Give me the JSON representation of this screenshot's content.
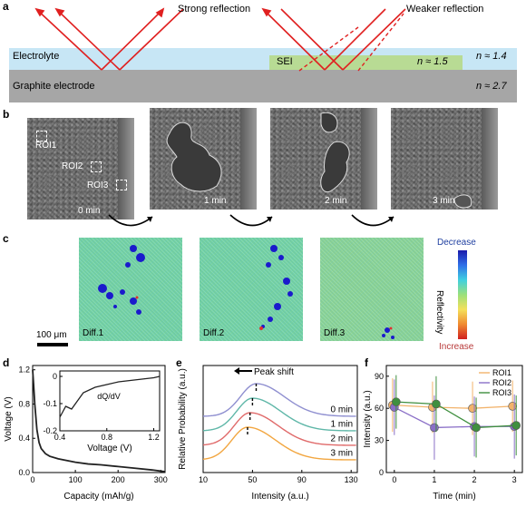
{
  "panels": {
    "a": "a",
    "b": "b",
    "c": "c",
    "d": "d",
    "e": "e",
    "f": "f"
  },
  "a": {
    "strong_reflection": "Strong reflection",
    "weaker_reflection": "Weaker reflection",
    "electrolyte": "Electrolyte",
    "sei": "SEI",
    "n_sei": "n ≈ 1.5",
    "n_electrolyte": "n ≈ 1.4",
    "graphite": "Graphite electrode",
    "n_graphite": "n ≈ 2.7"
  },
  "b": {
    "rois": [
      "ROI1",
      "ROI2",
      "ROI3"
    ],
    "times": [
      "0 min",
      "1 min",
      "2 min",
      "3 min"
    ]
  },
  "c": {
    "diffs": [
      "Diff.1",
      "Diff.2",
      "Diff.3"
    ],
    "scale_bar": "100 μm",
    "colorbar_top": "Decrease",
    "colorbar_bottom": "Increase",
    "colorbar_title": "Reflectivity"
  },
  "chart_data": [
    {
      "type": "line",
      "panel": "d",
      "xlabel": "Capacity (mAh/g)",
      "ylabel": "Voltage (V)",
      "xlim": [
        0,
        310
      ],
      "ylim": [
        0,
        1.25
      ],
      "xticks": [
        "0",
        "100",
        "200",
        "300"
      ],
      "yticks": [
        "0.0",
        "0.4",
        "0.8",
        "1.2"
      ],
      "x": [
        0,
        2,
        5,
        10,
        15,
        20,
        30,
        40,
        60,
        80,
        100,
        130,
        160,
        200,
        240,
        280,
        310
      ],
      "y": [
        1.2,
        1.05,
        0.8,
        0.5,
        0.35,
        0.28,
        0.22,
        0.19,
        0.16,
        0.14,
        0.12,
        0.1,
        0.09,
        0.07,
        0.05,
        0.03,
        0.01
      ],
      "inset": {
        "label": "dQ/dV",
        "xlabel": "Voltage (V)",
        "xlim": [
          0.4,
          1.25
        ],
        "ylim": [
          -0.2,
          0.02
        ],
        "xticks": [
          "0.4",
          "0.8",
          "1.2"
        ],
        "yticks": [
          "0",
          "-0.1",
          "-0.2"
        ],
        "x": [
          0.4,
          0.45,
          0.5,
          0.55,
          0.6,
          0.7,
          0.8,
          0.9,
          1.0,
          1.1,
          1.2,
          1.25
        ],
        "y": [
          -0.15,
          -0.11,
          -0.12,
          -0.09,
          -0.06,
          -0.04,
          -0.03,
          -0.02,
          -0.015,
          -0.01,
          -0.005,
          0
        ]
      }
    },
    {
      "type": "line",
      "panel": "e",
      "xlabel": "Intensity (a.u.)",
      "ylabel": "Relative Probability (a.u.)",
      "xlim": [
        10,
        135
      ],
      "xticks": [
        "10",
        "50",
        "90",
        "130"
      ],
      "annotation": "Peak shift",
      "series": [
        {
          "name": "0 min",
          "color": "#8f8fd0",
          "peak": 53,
          "offset": 3
        },
        {
          "name": "1 min",
          "color": "#5fb7a8",
          "peak": 50,
          "offset": 2
        },
        {
          "name": "2 min",
          "color": "#e06a6a",
          "peak": 48,
          "offset": 1
        },
        {
          "name": "3 min",
          "color": "#f2a640",
          "peak": 46,
          "offset": 0
        }
      ]
    },
    {
      "type": "line",
      "panel": "f",
      "xlabel": "Time (min)",
      "ylabel": "Intensity (a.u.)",
      "xlim": [
        -0.2,
        3.2
      ],
      "ylim": [
        0,
        100
      ],
      "xticks": [
        "0",
        "1",
        "2",
        "3"
      ],
      "yticks": [
        "0",
        "30",
        "60",
        "90"
      ],
      "x": [
        0,
        1,
        2,
        3
      ],
      "series": [
        {
          "name": "ROI1",
          "color": "#f2b36b",
          "values": [
            63,
            61,
            60,
            62
          ],
          "err": [
            25,
            24,
            25,
            24
          ]
        },
        {
          "name": "ROI2",
          "color": "#8a6fc7",
          "values": [
            61,
            42,
            43,
            43
          ],
          "err": [
            26,
            30,
            28,
            30
          ]
        },
        {
          "name": "ROI3",
          "color": "#3f8f3f",
          "values": [
            66,
            64,
            42,
            44
          ],
          "err": [
            25,
            26,
            28,
            28
          ]
        }
      ]
    }
  ]
}
